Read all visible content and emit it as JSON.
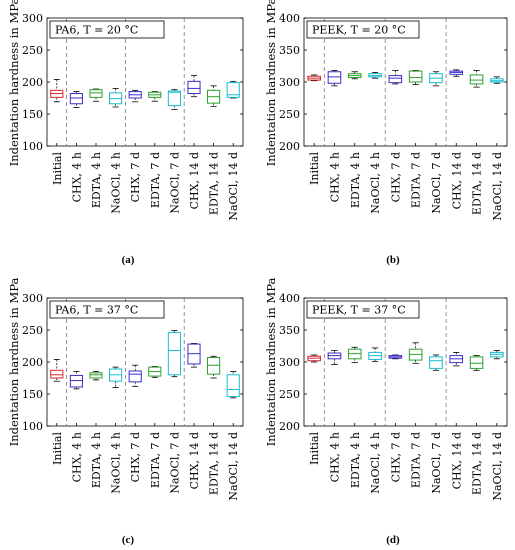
{
  "x_categories": [
    "Initial",
    "CHX, 4 h",
    "EDTA, 4 h",
    "NaOCl, 4 h",
    "CHX, 7 d",
    "EDTA, 7 d",
    "NaOCl, 7 d",
    "CHX, 14 d",
    "EDTA, 14 d",
    "NaOCl, 14 d"
  ],
  "ylabel": "Indentation hardness in MPa",
  "box_colors": [
    "#d62728",
    "#3b2fc9",
    "#2ca02c",
    "#17becf",
    "#3b2fc9",
    "#2ca02c",
    "#17becf",
    "#3b2fc9",
    "#2ca02c",
    "#17becf"
  ],
  "chart_data": [
    {
      "type": "box",
      "id": "a",
      "caption": "(a)",
      "label_material": "PA6",
      "label_temp": "T = 20 °C",
      "ylim": [
        100,
        300
      ],
      "yticks": [
        100,
        150,
        200,
        250,
        300
      ],
      "group_dividers_after": [
        1,
        4,
        7
      ],
      "grid": false,
      "boxes": [
        {
          "category": "Initial",
          "min": 169,
          "q1": 176,
          "median": 182,
          "q3": 187,
          "max": 204
        },
        {
          "category": "CHX, 4 h",
          "min": 160,
          "q1": 166,
          "median": 175,
          "q3": 182,
          "max": 185
        },
        {
          "category": "EDTA, 4 h",
          "min": 170,
          "q1": 176,
          "median": 183,
          "q3": 188,
          "max": 189
        },
        {
          "category": "NaOCl, 4 h",
          "min": 161,
          "q1": 166,
          "median": 174,
          "q3": 183,
          "max": 190
        },
        {
          "category": "CHX, 7 d",
          "min": 169,
          "q1": 175,
          "median": 180,
          "q3": 185,
          "max": 187
        },
        {
          "category": "EDTA, 7 d",
          "min": 170,
          "q1": 176,
          "median": 180,
          "q3": 184,
          "max": 185
        },
        {
          "category": "NaOCl, 7 d",
          "min": 157,
          "q1": 163,
          "median": 184,
          "q3": 186,
          "max": 188
        },
        {
          "category": "CHX, 14 d",
          "min": 177,
          "q1": 182,
          "median": 190,
          "q3": 201,
          "max": 210
        },
        {
          "category": "EDTA, 14 d",
          "min": 162,
          "q1": 167,
          "median": 177,
          "q3": 187,
          "max": 194
        },
        {
          "category": "NaOCl, 14 d",
          "min": 175,
          "q1": 176,
          "median": 180,
          "q3": 199,
          "max": 201
        }
      ]
    },
    {
      "type": "box",
      "id": "b",
      "caption": "(b)",
      "label_material": "PEEK",
      "label_temp": "T = 20 °C",
      "ylim": [
        200,
        400
      ],
      "yticks": [
        200,
        250,
        300,
        350,
        400
      ],
      "group_dividers_after": [
        1,
        4,
        7
      ],
      "grid": false,
      "boxes": [
        {
          "category": "Initial",
          "min": 302,
          "q1": 303,
          "median": 306,
          "q3": 309,
          "max": 311
        },
        {
          "category": "CHX, 4 h",
          "min": 294,
          "q1": 298,
          "median": 308,
          "q3": 316,
          "max": 318
        },
        {
          "category": "EDTA, 4 h",
          "min": 305,
          "q1": 307,
          "median": 310,
          "q3": 313,
          "max": 316
        },
        {
          "category": "NaOCl, 4 h",
          "min": 306,
          "q1": 308,
          "median": 310,
          "q3": 313,
          "max": 315
        },
        {
          "category": "CHX, 7 d",
          "min": 297,
          "q1": 299,
          "median": 306,
          "q3": 310,
          "max": 318
        },
        {
          "category": "EDTA, 7 d",
          "min": 296,
          "q1": 300,
          "median": 307,
          "q3": 317,
          "max": 318
        },
        {
          "category": "NaOCl, 7 d",
          "min": 294,
          "q1": 299,
          "median": 306,
          "q3": 313,
          "max": 316
        },
        {
          "category": "CHX, 14 d",
          "min": 309,
          "q1": 312,
          "median": 315,
          "q3": 317,
          "max": 319
        },
        {
          "category": "EDTA, 14 d",
          "min": 292,
          "q1": 297,
          "median": 303,
          "q3": 311,
          "max": 318
        },
        {
          "category": "NaOCl, 14 d",
          "min": 298,
          "q1": 300,
          "median": 302,
          "q3": 305,
          "max": 308
        }
      ]
    },
    {
      "type": "box",
      "id": "c",
      "caption": "(c)",
      "label_material": "PA6",
      "label_temp": "T = 37 °C",
      "ylim": [
        100,
        300
      ],
      "yticks": [
        100,
        150,
        200,
        250,
        300
      ],
      "group_dividers_after": [
        1,
        4,
        7
      ],
      "grid": false,
      "boxes": [
        {
          "category": "Initial",
          "min": 170,
          "q1": 175,
          "median": 180,
          "q3": 187,
          "max": 204
        },
        {
          "category": "CHX, 4 h",
          "min": 158,
          "q1": 161,
          "median": 171,
          "q3": 179,
          "max": 185
        },
        {
          "category": "EDTA, 4 h",
          "min": 172,
          "q1": 175,
          "median": 180,
          "q3": 183,
          "max": 185
        },
        {
          "category": "NaOCl, 4 h",
          "min": 160,
          "q1": 170,
          "median": 180,
          "q3": 189,
          "max": 192
        },
        {
          "category": "CHX, 7 d",
          "min": 162,
          "q1": 169,
          "median": 181,
          "q3": 186,
          "max": 195
        },
        {
          "category": "EDTA, 7 d",
          "min": 176,
          "q1": 178,
          "median": 185,
          "q3": 192,
          "max": 193
        },
        {
          "category": "NaOCl, 7 d",
          "min": 177,
          "q1": 180,
          "median": 218,
          "q3": 246,
          "max": 249
        },
        {
          "category": "CHX, 14 d",
          "min": 192,
          "q1": 197,
          "median": 213,
          "q3": 228,
          "max": 229
        },
        {
          "category": "EDTA, 14 d",
          "min": 175,
          "q1": 181,
          "median": 195,
          "q3": 207,
          "max": 209
        },
        {
          "category": "NaOCl, 14 d",
          "min": 144,
          "q1": 146,
          "median": 157,
          "q3": 180,
          "max": 185
        }
      ]
    },
    {
      "type": "box",
      "id": "d",
      "caption": "(d)",
      "label_material": "PEEK",
      "label_temp": "T = 37 °C",
      "ylim": [
        200,
        400
      ],
      "yticks": [
        200,
        250,
        300,
        350,
        400
      ],
      "group_dividers_after": [
        1,
        4,
        7
      ],
      "grid": false,
      "boxes": [
        {
          "category": "Initial",
          "min": 300,
          "q1": 302,
          "median": 306,
          "q3": 309,
          "max": 311
        },
        {
          "category": "CHX, 4 h",
          "min": 296,
          "q1": 305,
          "median": 310,
          "q3": 314,
          "max": 318
        },
        {
          "category": "EDTA, 4 h",
          "min": 299,
          "q1": 305,
          "median": 313,
          "q3": 320,
          "max": 323
        },
        {
          "category": "NaOCl, 4 h",
          "min": 301,
          "q1": 304,
          "median": 310,
          "q3": 315,
          "max": 322
        },
        {
          "category": "CHX, 7 d",
          "min": 305,
          "q1": 306,
          "median": 308,
          "q3": 310,
          "max": 311
        },
        {
          "category": "EDTA, 7 d",
          "min": 298,
          "q1": 303,
          "median": 312,
          "q3": 320,
          "max": 330
        },
        {
          "category": "NaOCl, 7 d",
          "min": 287,
          "q1": 290,
          "median": 302,
          "q3": 308,
          "max": 311
        },
        {
          "category": "CHX, 14 d",
          "min": 294,
          "q1": 299,
          "median": 305,
          "q3": 310,
          "max": 315
        },
        {
          "category": "EDTA, 14 d",
          "min": 287,
          "q1": 290,
          "median": 298,
          "q3": 308,
          "max": 310
        },
        {
          "category": "NaOCl, 14 d",
          "min": 305,
          "q1": 308,
          "median": 312,
          "q3": 315,
          "max": 318
        }
      ]
    }
  ]
}
